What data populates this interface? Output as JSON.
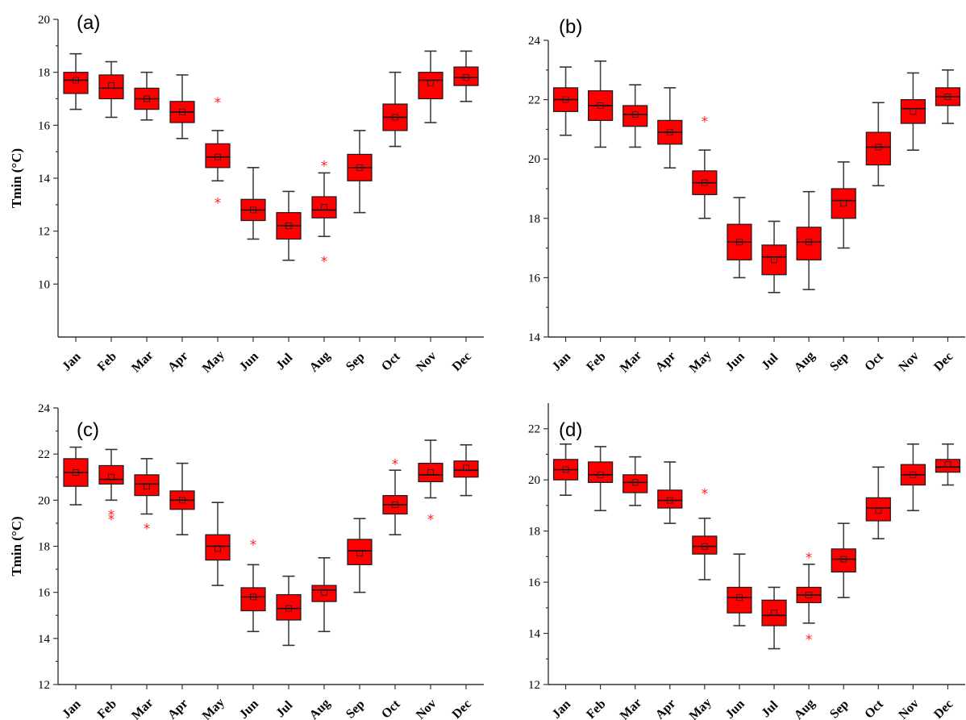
{
  "chart_data": [
    {
      "type": "box",
      "panel_label": "(a)",
      "ylabel": "Tmin (°C)",
      "ylim": [
        8,
        20
      ],
      "yticks": [
        10,
        12,
        14,
        16,
        18,
        20
      ],
      "categories": [
        "Jan",
        "Feb",
        "Mar",
        "Apr",
        "May",
        "Jun",
        "Jul",
        "Aug",
        "Sep",
        "Oct",
        "Nov",
        "Dec"
      ],
      "boxes": [
        {
          "min": 16.6,
          "q1": 17.2,
          "median": 17.7,
          "q3": 18.0,
          "max": 18.7,
          "mean": 17.7,
          "outliers": []
        },
        {
          "min": 16.3,
          "q1": 17.0,
          "median": 17.4,
          "q3": 17.9,
          "max": 18.4,
          "mean": 17.5,
          "outliers": []
        },
        {
          "min": 16.2,
          "q1": 16.6,
          "median": 17.0,
          "q3": 17.4,
          "max": 18.0,
          "mean": 17.0,
          "outliers": []
        },
        {
          "min": 15.5,
          "q1": 16.1,
          "median": 16.5,
          "q3": 16.9,
          "max": 17.9,
          "mean": 16.5,
          "outliers": []
        },
        {
          "min": 13.9,
          "q1": 14.4,
          "median": 14.8,
          "q3": 15.3,
          "max": 15.8,
          "mean": 14.8,
          "outliers": [
            16.9,
            13.1
          ]
        },
        {
          "min": 11.7,
          "q1": 12.4,
          "median": 12.8,
          "q3": 13.2,
          "max": 14.4,
          "mean": 12.8,
          "outliers": []
        },
        {
          "min": 10.9,
          "q1": 11.7,
          "median": 12.2,
          "q3": 12.7,
          "max": 13.5,
          "mean": 12.2,
          "outliers": []
        },
        {
          "min": 11.8,
          "q1": 12.5,
          "median": 12.8,
          "q3": 13.3,
          "max": 14.2,
          "mean": 12.9,
          "outliers": [
            14.5,
            10.9
          ]
        },
        {
          "min": 12.7,
          "q1": 13.9,
          "median": 14.4,
          "q3": 14.9,
          "max": 15.8,
          "mean": 14.4,
          "outliers": []
        },
        {
          "min": 15.2,
          "q1": 15.8,
          "median": 16.3,
          "q3": 16.8,
          "max": 18.0,
          "mean": 16.3,
          "outliers": []
        },
        {
          "min": 16.1,
          "q1": 17.0,
          "median": 17.7,
          "q3": 18.0,
          "max": 18.8,
          "mean": 17.6,
          "outliers": []
        },
        {
          "min": 16.9,
          "q1": 17.5,
          "median": 17.8,
          "q3": 18.2,
          "max": 18.8,
          "mean": 17.8,
          "outliers": []
        }
      ]
    },
    {
      "type": "box",
      "panel_label": "(b)",
      "ylabel": "",
      "ylim": [
        14,
        24
      ],
      "yticks": [
        14,
        16,
        18,
        20,
        22,
        24
      ],
      "categories": [
        "Jan",
        "Feb",
        "Mar",
        "Apr",
        "May",
        "Jun",
        "Jul",
        "Aug",
        "Sep",
        "Oct",
        "Nov",
        "Dec"
      ],
      "boxes": [
        {
          "min": 20.8,
          "q1": 21.6,
          "median": 22.0,
          "q3": 22.4,
          "max": 23.1,
          "mean": 22.0,
          "outliers": []
        },
        {
          "min": 20.4,
          "q1": 21.3,
          "median": 21.8,
          "q3": 22.3,
          "max": 23.3,
          "mean": 21.8,
          "outliers": []
        },
        {
          "min": 20.4,
          "q1": 21.1,
          "median": 21.5,
          "q3": 21.8,
          "max": 22.5,
          "mean": 21.5,
          "outliers": []
        },
        {
          "min": 19.7,
          "q1": 20.5,
          "median": 20.9,
          "q3": 21.3,
          "max": 22.4,
          "mean": 20.9,
          "outliers": []
        },
        {
          "min": 18.0,
          "q1": 18.8,
          "median": 19.2,
          "q3": 19.6,
          "max": 20.3,
          "mean": 19.2,
          "outliers": [
            21.3
          ]
        },
        {
          "min": 16.0,
          "q1": 16.6,
          "median": 17.2,
          "q3": 17.8,
          "max": 18.7,
          "mean": 17.2,
          "outliers": []
        },
        {
          "min": 15.5,
          "q1": 16.1,
          "median": 16.7,
          "q3": 17.1,
          "max": 17.9,
          "mean": 16.6,
          "outliers": []
        },
        {
          "min": 15.6,
          "q1": 16.6,
          "median": 17.2,
          "q3": 17.7,
          "max": 18.9,
          "mean": 17.2,
          "outliers": []
        },
        {
          "min": 17.0,
          "q1": 18.0,
          "median": 18.6,
          "q3": 19.0,
          "max": 19.9,
          "mean": 18.5,
          "outliers": []
        },
        {
          "min": 19.1,
          "q1": 19.8,
          "median": 20.4,
          "q3": 20.9,
          "max": 21.9,
          "mean": 20.4,
          "outliers": []
        },
        {
          "min": 20.3,
          "q1": 21.2,
          "median": 21.7,
          "q3": 22.0,
          "max": 22.9,
          "mean": 21.6,
          "outliers": []
        },
        {
          "min": 21.2,
          "q1": 21.8,
          "median": 22.1,
          "q3": 22.4,
          "max": 23.0,
          "mean": 22.1,
          "outliers": []
        }
      ]
    },
    {
      "type": "box",
      "panel_label": "(c)",
      "ylabel": "Tmin (°C)",
      "ylim": [
        12,
        24
      ],
      "yticks": [
        12,
        14,
        16,
        18,
        20,
        22,
        24
      ],
      "categories": [
        "Jan",
        "Feb",
        "Mar",
        "Apr",
        "May",
        "Jun",
        "Jul",
        "Aug",
        "Sep",
        "Oct",
        "Nov",
        "Dec"
      ],
      "boxes": [
        {
          "min": 19.8,
          "q1": 20.6,
          "median": 21.2,
          "q3": 21.8,
          "max": 22.3,
          "mean": 21.2,
          "outliers": []
        },
        {
          "min": 20.0,
          "q1": 20.7,
          "median": 20.9,
          "q3": 21.5,
          "max": 22.2,
          "mean": 21.0,
          "outliers": [
            19.4,
            19.2
          ]
        },
        {
          "min": 19.4,
          "q1": 20.2,
          "median": 20.7,
          "q3": 21.1,
          "max": 21.8,
          "mean": 20.6,
          "outliers": [
            18.8
          ]
        },
        {
          "min": 18.5,
          "q1": 19.6,
          "median": 20.0,
          "q3": 20.4,
          "max": 21.6,
          "mean": 20.0,
          "outliers": []
        },
        {
          "min": 16.3,
          "q1": 17.4,
          "median": 18.0,
          "q3": 18.5,
          "max": 19.9,
          "mean": 17.9,
          "outliers": []
        },
        {
          "min": 14.3,
          "q1": 15.2,
          "median": 15.8,
          "q3": 16.2,
          "max": 17.2,
          "mean": 15.8,
          "outliers": [
            18.1
          ]
        },
        {
          "min": 13.7,
          "q1": 14.8,
          "median": 15.3,
          "q3": 15.9,
          "max": 16.7,
          "mean": 15.3,
          "outliers": []
        },
        {
          "min": 14.3,
          "q1": 15.6,
          "median": 16.1,
          "q3": 16.3,
          "max": 17.5,
          "mean": 16.0,
          "outliers": []
        },
        {
          "min": 16.0,
          "q1": 17.2,
          "median": 17.8,
          "q3": 18.3,
          "max": 19.2,
          "mean": 17.7,
          "outliers": []
        },
        {
          "min": 18.5,
          "q1": 19.4,
          "median": 19.8,
          "q3": 20.2,
          "max": 21.3,
          "mean": 19.8,
          "outliers": [
            21.6
          ]
        },
        {
          "min": 20.1,
          "q1": 20.8,
          "median": 21.1,
          "q3": 21.6,
          "max": 22.6,
          "mean": 21.2,
          "outliers": [
            19.2
          ]
        },
        {
          "min": 20.2,
          "q1": 21.0,
          "median": 21.3,
          "q3": 21.7,
          "max": 22.4,
          "mean": 21.4,
          "outliers": []
        }
      ]
    },
    {
      "type": "box",
      "panel_label": "(d)",
      "ylabel": "",
      "ylim": [
        12,
        23
      ],
      "yticks": [
        12,
        14,
        16,
        18,
        20,
        22
      ],
      "categories": [
        "Jan",
        "Feb",
        "Mar",
        "Apr",
        "May",
        "Jun",
        "Jul",
        "Aug",
        "Sep",
        "Oct",
        "Nov",
        "Dec"
      ],
      "boxes": [
        {
          "min": 19.4,
          "q1": 20.0,
          "median": 20.4,
          "q3": 20.8,
          "max": 21.4,
          "mean": 20.4,
          "outliers": []
        },
        {
          "min": 18.8,
          "q1": 19.9,
          "median": 20.2,
          "q3": 20.7,
          "max": 21.3,
          "mean": 20.2,
          "outliers": []
        },
        {
          "min": 19.0,
          "q1": 19.5,
          "median": 19.9,
          "q3": 20.2,
          "max": 20.9,
          "mean": 19.9,
          "outliers": []
        },
        {
          "min": 18.3,
          "q1": 18.9,
          "median": 19.2,
          "q3": 19.6,
          "max": 20.7,
          "mean": 19.2,
          "outliers": []
        },
        {
          "min": 16.1,
          "q1": 17.1,
          "median": 17.4,
          "q3": 17.8,
          "max": 18.5,
          "mean": 17.4,
          "outliers": [
            19.5
          ]
        },
        {
          "min": 14.3,
          "q1": 14.8,
          "median": 15.4,
          "q3": 15.8,
          "max": 17.1,
          "mean": 15.4,
          "outliers": []
        },
        {
          "min": 13.4,
          "q1": 14.3,
          "median": 14.7,
          "q3": 15.3,
          "max": 15.8,
          "mean": 14.8,
          "outliers": []
        },
        {
          "min": 14.4,
          "q1": 15.2,
          "median": 15.5,
          "q3": 15.8,
          "max": 16.7,
          "mean": 15.5,
          "outliers": [
            17.0,
            13.8
          ]
        },
        {
          "min": 15.4,
          "q1": 16.4,
          "median": 16.9,
          "q3": 17.3,
          "max": 18.3,
          "mean": 16.9,
          "outliers": []
        },
        {
          "min": 17.7,
          "q1": 18.4,
          "median": 18.9,
          "q3": 19.3,
          "max": 20.5,
          "mean": 18.8,
          "outliers": []
        },
        {
          "min": 18.8,
          "q1": 19.8,
          "median": 20.2,
          "q3": 20.6,
          "max": 21.4,
          "mean": 20.2,
          "outliers": []
        },
        {
          "min": 19.8,
          "q1": 20.3,
          "median": 20.5,
          "q3": 20.8,
          "max": 21.4,
          "mean": 20.6,
          "outliers": []
        }
      ]
    }
  ]
}
